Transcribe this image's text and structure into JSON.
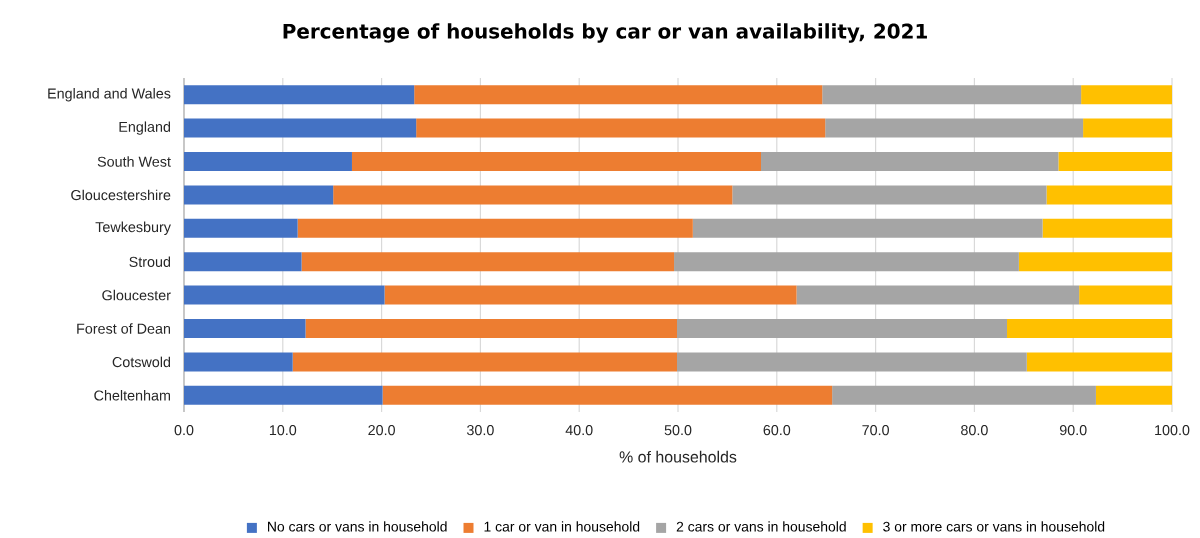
{
  "chart_data": {
    "type": "bar",
    "orientation": "horizontal",
    "stacked": true,
    "title": "Percentage of households  by car or van availability, 2021",
    "xlabel": "% of households",
    "categories": [
      "England and Wales",
      "England",
      "South West",
      "Gloucestershire",
      "Tewkesbury",
      "Stroud",
      "Gloucester",
      "Forest of Dean",
      "Cotswold",
      "Cheltenham"
    ],
    "series": [
      {
        "name": "No cars or vans in household",
        "color": "#4472c4",
        "values": [
          23.3,
          23.5,
          17.0,
          15.1,
          11.5,
          11.9,
          20.3,
          12.3,
          11.0,
          20.1
        ]
      },
      {
        "name": "1 car or van in household",
        "color": "#ed7d31",
        "values": [
          41.3,
          41.4,
          41.4,
          40.4,
          40.0,
          37.7,
          41.7,
          37.6,
          38.9,
          45.5
        ]
      },
      {
        "name": "2 cars or vans in household",
        "color": "#a5a5a5",
        "values": [
          26.2,
          26.1,
          30.1,
          31.8,
          35.4,
          34.9,
          28.6,
          33.4,
          35.4,
          26.7
        ]
      },
      {
        "name": "3 or more cars or vans in household",
        "color": "#ffc000",
        "values": [
          9.2,
          9.0,
          11.5,
          12.7,
          13.1,
          15.5,
          9.4,
          16.7,
          14.7,
          7.7
        ]
      }
    ],
    "xlim": [
      0,
      100
    ],
    "xticks": [
      {
        "value": 0,
        "label": "0.0"
      },
      {
        "value": 10,
        "label": "10.0"
      },
      {
        "value": 20,
        "label": "20.0"
      },
      {
        "value": 30,
        "label": "30.0"
      },
      {
        "value": 40,
        "label": "40.0"
      },
      {
        "value": 50,
        "label": "50.0"
      },
      {
        "value": 60,
        "label": "60.0"
      },
      {
        "value": 70,
        "label": "70.0"
      },
      {
        "value": 80,
        "label": "80.0"
      },
      {
        "value": 90,
        "label": "90.0"
      },
      {
        "value": 100,
        "label": "100.0"
      }
    ],
    "grid": "x",
    "legend": "bottom"
  }
}
